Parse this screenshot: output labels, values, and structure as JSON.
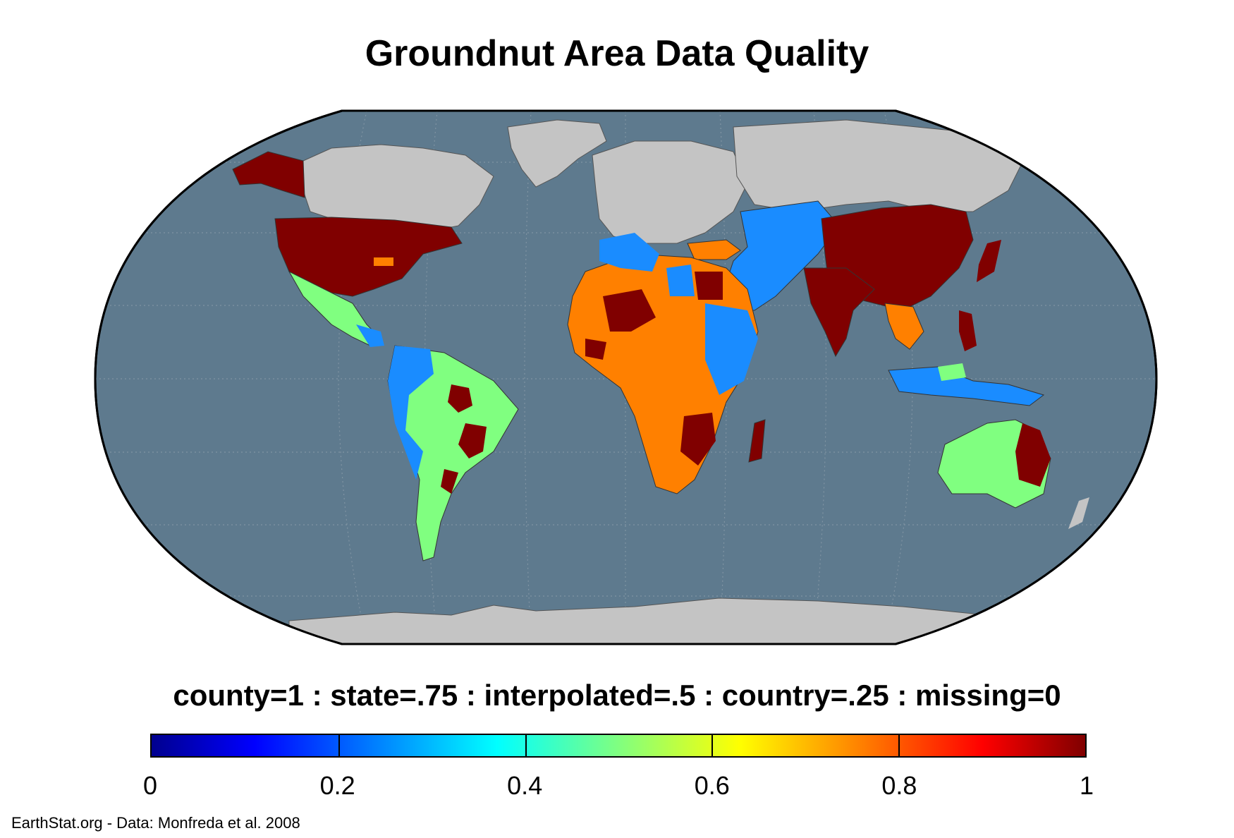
{
  "title": "Groundnut Area Data Quality",
  "legend": {
    "caption": "county=1 : state=.75 : interpolated=.5 : country=.25 : missing=0",
    "ticks": [
      "0",
      "0.2",
      "0.4",
      "0.6",
      "0.8",
      "1"
    ],
    "colormap": "jet",
    "range": [
      0,
      1
    ]
  },
  "credit": "EarthStat.org - Data: Monfreda et al. 2008",
  "colors": {
    "ocean": "#5e7a8e",
    "no_data_land": "#c4c4c4",
    "county": "#800000",
    "state": "#ff8000",
    "interpolated": "#80ff80",
    "country": "#1a8cff",
    "graticule": "#7a8c99"
  }
}
